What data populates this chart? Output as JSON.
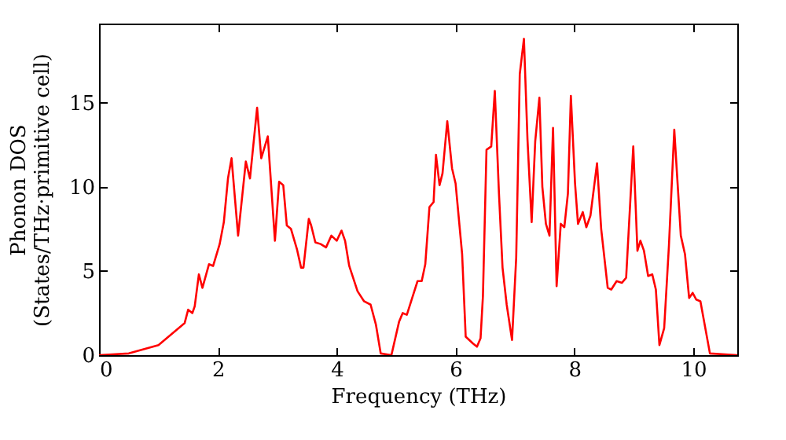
{
  "chart_data": {
    "type": "line",
    "xlabel": "Frequency (THz)",
    "ylabel": "Phonon DOS\n(States/THz·primitive cell)",
    "x": [
      0,
      0.5,
      1,
      1.44,
      1.5,
      1.57,
      1.61,
      1.68,
      1.74,
      1.85,
      1.92,
      2.03,
      2.1,
      2.17,
      2.23,
      2.34,
      2.47,
      2.54,
      2.66,
      2.73,
      2.84,
      2.96,
      3.03,
      3.1,
      3.16,
      3.23,
      3.33,
      3.4,
      3.44,
      3.53,
      3.57,
      3.64,
      3.73,
      3.82,
      3.91,
      4.0,
      4.08,
      4.14,
      4.21,
      4.35,
      4.46,
      4.57,
      4.66,
      4.74,
      4.92,
      5.05,
      5.11,
      5.18,
      5.27,
      5.36,
      5.43,
      5.49,
      5.56,
      5.63,
      5.67,
      5.73,
      5.78,
      5.86,
      5.94,
      6.0,
      6.11,
      6.17,
      6.29,
      6.36,
      6.42,
      6.46,
      6.52,
      6.6,
      6.66,
      6.73,
      6.79,
      6.86,
      6.95,
      7.02,
      7.08,
      7.15,
      7.21,
      7.28,
      7.34,
      7.41,
      7.46,
      7.52,
      7.58,
      7.64,
      7.7,
      7.77,
      7.83,
      7.89,
      7.94,
      8.01,
      8.06,
      8.14,
      8.2,
      8.27,
      8.38,
      8.45,
      8.56,
      8.62,
      8.71,
      8.8,
      8.87,
      8.99,
      9.06,
      9.11,
      9.17,
      9.24,
      9.31,
      9.37,
      9.43,
      9.51,
      9.59,
      9.68,
      9.79,
      9.86,
      9.93,
      9.99,
      10.05,
      10.12,
      10.28,
      10.74
    ],
    "series": [
      {
        "color": "#ff0000",
        "values": [
          0,
          0.1,
          0.6,
          1.9,
          2.7,
          2.5,
          2.9,
          4.8,
          4.0,
          5.4,
          5.3,
          6.6,
          7.9,
          10.5,
          11.7,
          7.1,
          11.5,
          10.5,
          14.7,
          11.7,
          13.0,
          6.8,
          10.3,
          10.1,
          7.7,
          7.5,
          6.3,
          5.2,
          5.2,
          8.1,
          7.7,
          6.7,
          6.6,
          6.4,
          7.1,
          6.8,
          7.4,
          6.8,
          5.3,
          3.8,
          3.2,
          3.0,
          1.8,
          0.1,
          0,
          2.0,
          2.5,
          2.4,
          3.4,
          4.4,
          4.4,
          5.4,
          8.8,
          9.1,
          11.9,
          10.1,
          10.8,
          13.9,
          11.1,
          10.2,
          6.0,
          1.1,
          0.7,
          0.5,
          1.0,
          3.5,
          12.2,
          12.4,
          15.7,
          9.6,
          5.2,
          3.0,
          0.9,
          5.8,
          16.7,
          18.8,
          12.8,
          7.9,
          12.7,
          15.3,
          10.0,
          7.8,
          7.1,
          13.5,
          4.1,
          7.8,
          7.6,
          9.6,
          15.4,
          10.2,
          7.8,
          8.5,
          7.6,
          8.3,
          11.4,
          7.5,
          4.0,
          3.9,
          4.4,
          4.3,
          4.6,
          12.4,
          6.2,
          6.8,
          6.2,
          4.7,
          4.8,
          3.9,
          0.6,
          1.6,
          6.5,
          13.4,
          7.1,
          6.0,
          3.4,
          3.7,
          3.3,
          3.2,
          0.1,
          0
        ]
      }
    ],
    "xlim": [
      0,
      10.74
    ],
    "ylim": [
      0,
      19.7
    ],
    "xticks": [
      0,
      2,
      4,
      6,
      8,
      10
    ],
    "yticks": [
      0,
      5,
      10,
      15
    ],
    "grid": false,
    "marker": "none",
    "line_style": "solid"
  }
}
